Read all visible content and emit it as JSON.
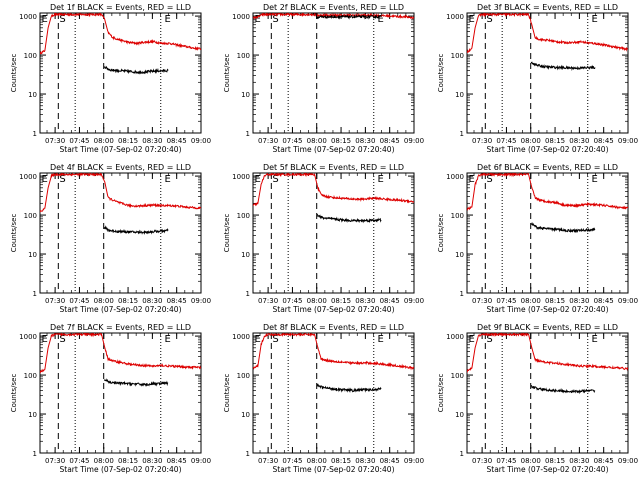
{
  "figure": {
    "ylabel": "Counts/sec",
    "xlabel": "Start Time (07-Sep-02 07:20:40)",
    "time_start_min": 0,
    "time_end_min": 99.33,
    "x_tick_labels": [
      "07:30",
      "07:45",
      "08:00",
      "08:15",
      "08:30",
      "08:45",
      "09:00"
    ],
    "x_tick_minutes": [
      9.33,
      24.33,
      39.33,
      54.33,
      69.33,
      84.33,
      99.33
    ],
    "y_tick_labels": [
      "1",
      "10",
      "100",
      "1000"
    ],
    "y_tick_values": [
      1,
      10,
      100,
      1000
    ],
    "y_range": [
      1,
      1200
    ],
    "series_colors": {
      "events": "#000000",
      "lld": "#dd0000"
    },
    "marker_E": "E",
    "marker_S": "S"
  },
  "chart_data": [
    {
      "type": "line",
      "title": "Det 1f BLACK = Events, RED = LLD",
      "markers": {
        "E1": 0.3,
        "S": 11.3,
        "dot1": 21.7,
        "dash": 39.3,
        "dot2": 74.5,
        "E2": 78.7
      },
      "lld": [
        [
          0,
          110
        ],
        [
          3,
          130
        ],
        [
          5,
          500
        ],
        [
          7,
          1000
        ],
        [
          9,
          1100
        ],
        [
          12,
          1100
        ],
        [
          36,
          1100
        ],
        [
          38,
          1100
        ],
        [
          40,
          800
        ],
        [
          42,
          380
        ],
        [
          45,
          280
        ],
        [
          50,
          240
        ],
        [
          55,
          210
        ],
        [
          60,
          200
        ],
        [
          65,
          215
        ],
        [
          70,
          220
        ],
        [
          75,
          200
        ],
        [
          80,
          200
        ],
        [
          85,
          180
        ],
        [
          90,
          165
        ],
        [
          95,
          150
        ],
        [
          99.3,
          145
        ]
      ],
      "events": [
        [
          39.6,
          50
        ],
        [
          43,
          42
        ],
        [
          48,
          40
        ],
        [
          55,
          38
        ],
        [
          62,
          36
        ],
        [
          68,
          38
        ],
        [
          72,
          39
        ],
        [
          79,
          40
        ]
      ]
    },
    {
      "type": "line",
      "title": "Det 2f BLACK = Events, RED = LLD",
      "markers": {
        "E1": 0.3,
        "S": 11.3,
        "dot1": 21.7,
        "dash": 39.3,
        "dot2": 74.5,
        "E2": 78.7
      },
      "lld": [
        [
          0,
          900
        ],
        [
          3,
          950
        ],
        [
          6,
          1100
        ],
        [
          9,
          1100
        ],
        [
          36,
          1100
        ],
        [
          38,
          1100
        ],
        [
          40,
          1050
        ],
        [
          45,
          1050
        ],
        [
          55,
          1050
        ],
        [
          65,
          1050
        ],
        [
          75,
          1050
        ],
        [
          85,
          1000
        ],
        [
          95,
          950
        ],
        [
          99.3,
          900
        ]
      ],
      "events": [
        [
          37,
          1100
        ],
        [
          38.5,
          1500
        ],
        [
          39.3,
          900
        ],
        [
          41,
          960
        ],
        [
          50,
          960
        ],
        [
          60,
          960
        ],
        [
          70,
          960
        ],
        [
          79,
          960
        ]
      ]
    },
    {
      "type": "line",
      "title": "Det 3f BLACK = Events, RED = LLD",
      "markers": {
        "E1": 0.3,
        "S": 11.3,
        "dot1": 21.7,
        "dash": 39.3,
        "dot2": 74.5,
        "E2": 78.7
      },
      "lld": [
        [
          0,
          120
        ],
        [
          3,
          150
        ],
        [
          5,
          500
        ],
        [
          7,
          1000
        ],
        [
          9,
          1100
        ],
        [
          36,
          1100
        ],
        [
          38,
          1100
        ],
        [
          40,
          600
        ],
        [
          42,
          280
        ],
        [
          45,
          250
        ],
        [
          50,
          240
        ],
        [
          55,
          220
        ],
        [
          60,
          210
        ],
        [
          65,
          210
        ],
        [
          70,
          220
        ],
        [
          75,
          205
        ],
        [
          80,
          195
        ],
        [
          85,
          180
        ],
        [
          90,
          165
        ],
        [
          95,
          150
        ],
        [
          99.3,
          140
        ]
      ],
      "events": [
        [
          39.6,
          65
        ],
        [
          43,
          55
        ],
        [
          48,
          50
        ],
        [
          55,
          48
        ],
        [
          62,
          47
        ],
        [
          68,
          46
        ],
        [
          72,
          47
        ],
        [
          79,
          48
        ]
      ]
    },
    {
      "type": "line",
      "title": "Det 4f BLACK = Events, RED = LLD",
      "markers": {
        "E1": 0.3,
        "S": 11.3,
        "dot1": 21.7,
        "dash": 39.3,
        "dot2": 74.5,
        "E2": 78.7
      },
      "lld": [
        [
          0,
          120
        ],
        [
          3,
          150
        ],
        [
          5,
          500
        ],
        [
          7,
          1000
        ],
        [
          9,
          1100
        ],
        [
          36,
          1100
        ],
        [
          38,
          1100
        ],
        [
          40,
          700
        ],
        [
          42,
          280
        ],
        [
          45,
          240
        ],
        [
          50,
          200
        ],
        [
          55,
          175
        ],
        [
          60,
          170
        ],
        [
          65,
          175
        ],
        [
          70,
          180
        ],
        [
          75,
          175
        ],
        [
          80,
          175
        ],
        [
          85,
          170
        ],
        [
          90,
          160
        ],
        [
          95,
          155
        ],
        [
          99.3,
          150
        ]
      ],
      "events": [
        [
          39.6,
          48
        ],
        [
          43,
          40
        ],
        [
          48,
          38
        ],
        [
          55,
          37
        ],
        [
          62,
          36
        ],
        [
          68,
          37
        ],
        [
          72,
          38
        ],
        [
          79,
          40
        ]
      ]
    },
    {
      "type": "line",
      "title": "Det 5f BLACK = Events, RED = LLD",
      "markers": {
        "E1": 0.3,
        "S": 11.3,
        "dot1": 21.7,
        "dash": 39.3,
        "dot2": 74.5,
        "E2": 78.7
      },
      "lld": [
        [
          0,
          180
        ],
        [
          3,
          200
        ],
        [
          5,
          600
        ],
        [
          7,
          1000
        ],
        [
          9,
          1100
        ],
        [
          36,
          1100
        ],
        [
          38,
          1100
        ],
        [
          40,
          500
        ],
        [
          42,
          330
        ],
        [
          45,
          300
        ],
        [
          50,
          280
        ],
        [
          55,
          270
        ],
        [
          60,
          260
        ],
        [
          65,
          255
        ],
        [
          70,
          260
        ],
        [
          75,
          270
        ],
        [
          80,
          260
        ],
        [
          85,
          250
        ],
        [
          90,
          240
        ],
        [
          95,
          230
        ],
        [
          99.3,
          220
        ]
      ],
      "events": [
        [
          39.6,
          100
        ],
        [
          43,
          85
        ],
        [
          48,
          80
        ],
        [
          55,
          75
        ],
        [
          62,
          72
        ],
        [
          68,
          72
        ],
        [
          72,
          73
        ],
        [
          79,
          75
        ]
      ]
    },
    {
      "type": "line",
      "title": "Det 6f BLACK = Events, RED = LLD",
      "markers": {
        "E1": 0.3,
        "S": 11.3,
        "dot1": 21.7,
        "dash": 39.3,
        "dot2": 74.5,
        "E2": 78.7
      },
      "lld": [
        [
          0,
          140
        ],
        [
          3,
          160
        ],
        [
          5,
          600
        ],
        [
          7,
          1000
        ],
        [
          9,
          1100
        ],
        [
          36,
          1100
        ],
        [
          38,
          1100
        ],
        [
          40,
          500
        ],
        [
          42,
          280
        ],
        [
          45,
          240
        ],
        [
          50,
          220
        ],
        [
          55,
          210
        ],
        [
          60,
          180
        ],
        [
          65,
          175
        ],
        [
          70,
          180
        ],
        [
          75,
          190
        ],
        [
          80,
          185
        ],
        [
          85,
          175
        ],
        [
          90,
          165
        ],
        [
          95,
          155
        ],
        [
          99.3,
          150
        ]
      ],
      "events": [
        [
          39.6,
          60
        ],
        [
          43,
          48
        ],
        [
          48,
          45
        ],
        [
          55,
          43
        ],
        [
          62,
          40
        ],
        [
          68,
          40
        ],
        [
          72,
          41
        ],
        [
          79,
          42
        ]
      ]
    },
    {
      "type": "line",
      "title": "Det 7f BLACK = Events, RED = LLD",
      "markers": {
        "E1": 0.3,
        "S": 11.3,
        "dot1": 21.7,
        "dash": 39.3,
        "dot2": 74.5,
        "E2": 78.7
      },
      "lld": [
        [
          0,
          120
        ],
        [
          3,
          140
        ],
        [
          5,
          500
        ],
        [
          7,
          1000
        ],
        [
          9,
          1100
        ],
        [
          36,
          1100
        ],
        [
          38,
          1100
        ],
        [
          40,
          500
        ],
        [
          42,
          260
        ],
        [
          45,
          230
        ],
        [
          50,
          210
        ],
        [
          55,
          190
        ],
        [
          60,
          180
        ],
        [
          65,
          175
        ],
        [
          70,
          170
        ],
        [
          75,
          175
        ],
        [
          80,
          170
        ],
        [
          85,
          165
        ],
        [
          90,
          160
        ],
        [
          95,
          160
        ],
        [
          99.3,
          155
        ]
      ],
      "events": [
        [
          39.6,
          75
        ],
        [
          43,
          65
        ],
        [
          48,
          62
        ],
        [
          55,
          60
        ],
        [
          62,
          58
        ],
        [
          68,
          58
        ],
        [
          72,
          60
        ],
        [
          79,
          62
        ]
      ]
    },
    {
      "type": "line",
      "title": "Det 8f BLACK = Events, RED = LLD",
      "markers": {
        "E1": 0.3,
        "S": 11.3,
        "dot1": 21.7,
        "dash": 39.3,
        "dot2": 74.5,
        "E2": 78.7
      },
      "lld": [
        [
          0,
          150
        ],
        [
          3,
          170
        ],
        [
          5,
          600
        ],
        [
          7,
          1000
        ],
        [
          9,
          1100
        ],
        [
          36,
          1100
        ],
        [
          38,
          1100
        ],
        [
          40,
          500
        ],
        [
          42,
          260
        ],
        [
          45,
          240
        ],
        [
          50,
          225
        ],
        [
          55,
          215
        ],
        [
          60,
          205
        ],
        [
          65,
          200
        ],
        [
          70,
          205
        ],
        [
          75,
          200
        ],
        [
          80,
          190
        ],
        [
          85,
          180
        ],
        [
          90,
          170
        ],
        [
          95,
          160
        ],
        [
          99.3,
          150
        ]
      ],
      "events": [
        [
          39.6,
          55
        ],
        [
          43,
          48
        ],
        [
          48,
          45
        ],
        [
          55,
          42
        ],
        [
          62,
          40
        ],
        [
          68,
          42
        ],
        [
          72,
          42
        ],
        [
          79,
          44
        ]
      ]
    },
    {
      "type": "line",
      "title": "Det 9f BLACK = Events, RED = LLD",
      "markers": {
        "E1": 0.3,
        "S": 11.3,
        "dot1": 21.7,
        "dash": 39.3,
        "dot2": 74.5,
        "E2": 78.7
      },
      "lld": [
        [
          0,
          130
        ],
        [
          3,
          150
        ],
        [
          5,
          500
        ],
        [
          7,
          1000
        ],
        [
          9,
          1100
        ],
        [
          36,
          1100
        ],
        [
          38,
          1100
        ],
        [
          40,
          500
        ],
        [
          42,
          250
        ],
        [
          45,
          230
        ],
        [
          50,
          210
        ],
        [
          55,
          200
        ],
        [
          60,
          190
        ],
        [
          65,
          180
        ],
        [
          70,
          170
        ],
        [
          75,
          170
        ],
        [
          80,
          165
        ],
        [
          85,
          160
        ],
        [
          90,
          155
        ],
        [
          95,
          150
        ],
        [
          99.3,
          145
        ]
      ],
      "events": [
        [
          39.6,
          52
        ],
        [
          43,
          45
        ],
        [
          48,
          42
        ],
        [
          55,
          40
        ],
        [
          62,
          38
        ],
        [
          68,
          38
        ],
        [
          72,
          39
        ],
        [
          79,
          40
        ]
      ]
    }
  ]
}
